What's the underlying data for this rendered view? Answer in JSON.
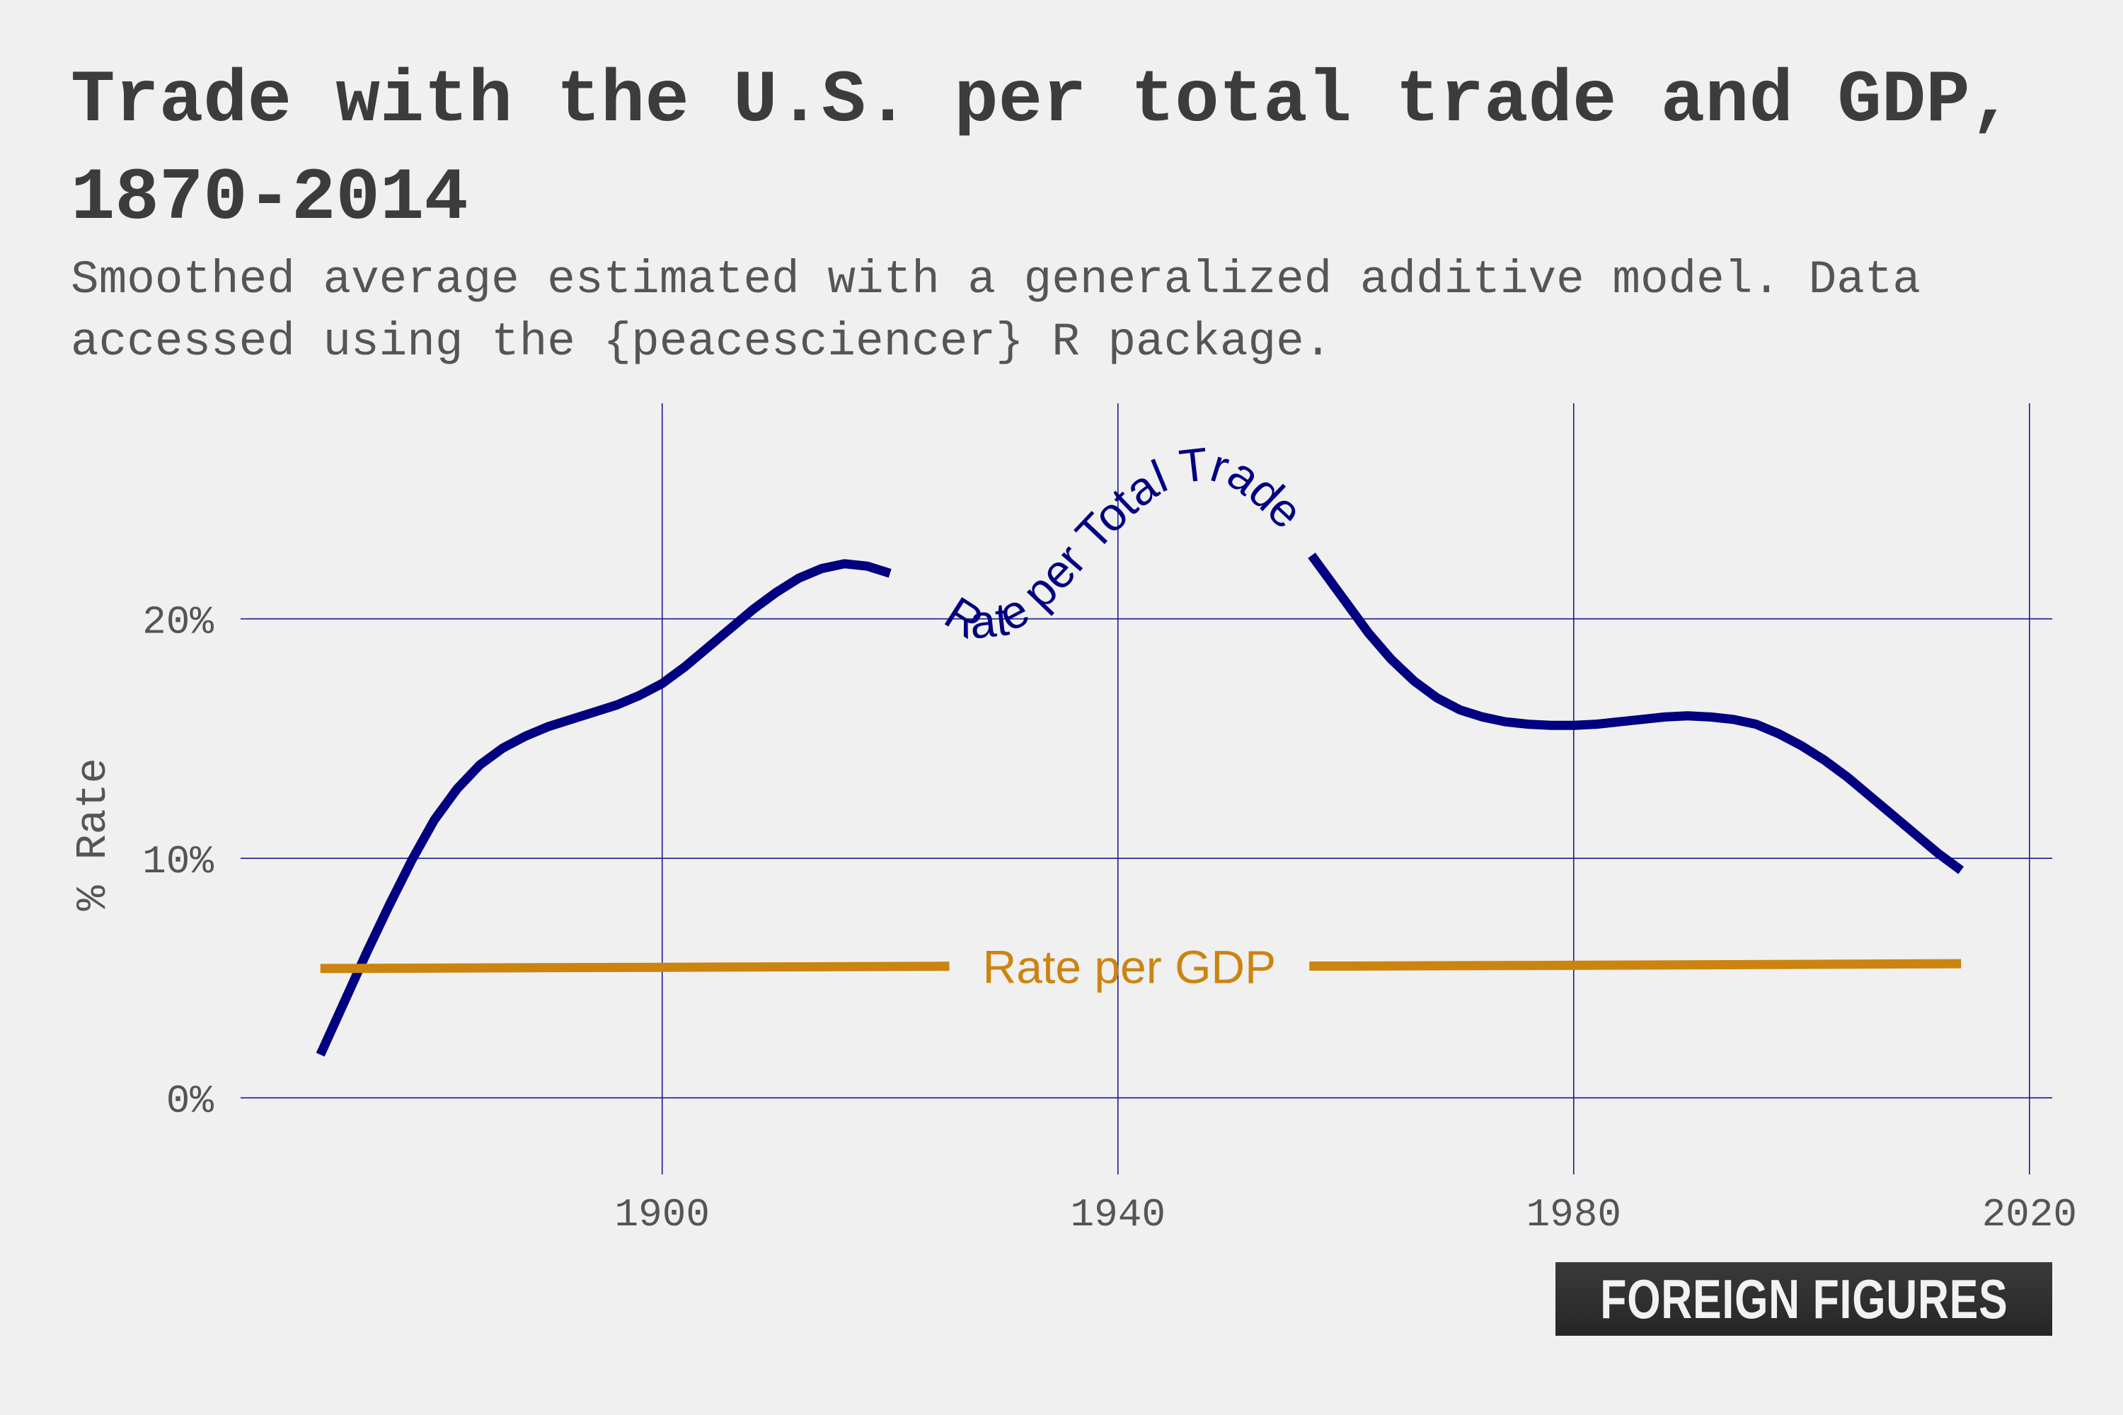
{
  "header": {
    "title": "Trade with the U.S. per total trade and GDP, 1870-2014",
    "subtitle": "Smoothed average estimated with a generalized additive model. Data accessed using the {peacesciencer} R package."
  },
  "branding": {
    "logo_text": "FOREIGN FIGURES"
  },
  "colors": {
    "background": "#f0f0f0",
    "grid": "#1a1a8c",
    "series_total_trade": "#000080",
    "series_gdp": "#cc8410"
  },
  "chart_data": {
    "type": "line",
    "title": "Trade with the U.S. per total trade and GDP, 1870-2014",
    "xlabel": "",
    "ylabel": "% Rate",
    "xlim": [
      1863,
      2022
    ],
    "ylim": [
      -3.2,
      29
    ],
    "x_ticks": [
      1900,
      1940,
      1980,
      2020
    ],
    "y_ticks": [
      0,
      10,
      20
    ],
    "y_tick_labels": [
      "0%",
      "10%",
      "20%"
    ],
    "grid": true,
    "legend": "none (direct labels)",
    "series": [
      {
        "name": "Rate per Total Trade",
        "label_position": "along curve 1921-1956",
        "x": [
          1870,
          1872,
          1874,
          1876,
          1878,
          1880,
          1882,
          1884,
          1886,
          1888,
          1890,
          1892,
          1894,
          1896,
          1898,
          1900,
          1902,
          1904,
          1906,
          1908,
          1910,
          1912,
          1914,
          1916,
          1918,
          1920,
          1922,
          1924,
          1926,
          1928,
          1930,
          1932,
          1934,
          1936,
          1938,
          1940,
          1942,
          1944,
          1946,
          1948,
          1950,
          1952,
          1954,
          1956,
          1958,
          1960,
          1962,
          1964,
          1966,
          1968,
          1970,
          1972,
          1974,
          1976,
          1978,
          1980,
          1982,
          1984,
          1986,
          1988,
          1990,
          1992,
          1994,
          1996,
          1998,
          2000,
          2002,
          2004,
          2006,
          2008,
          2010,
          2012,
          2014
        ],
        "values": [
          1.8,
          3.9,
          6.0,
          8.0,
          9.9,
          11.6,
          12.9,
          13.9,
          14.6,
          15.1,
          15.5,
          15.8,
          16.1,
          16.4,
          16.8,
          17.3,
          18.0,
          18.8,
          19.6,
          20.4,
          21.1,
          21.7,
          22.1,
          22.3,
          22.2,
          21.9,
          21.3,
          20.6,
          20.0,
          19.8,
          19.9,
          20.4,
          21.2,
          22.2,
          23.3,
          24.3,
          25.2,
          25.9,
          26.3,
          26.4,
          26.1,
          25.4,
          24.5,
          23.3,
          22.0,
          20.7,
          19.4,
          18.3,
          17.4,
          16.7,
          16.2,
          15.9,
          15.7,
          15.6,
          15.55,
          15.55,
          15.6,
          15.7,
          15.8,
          15.9,
          15.95,
          15.9,
          15.8,
          15.6,
          15.2,
          14.7,
          14.1,
          13.4,
          12.6,
          11.8,
          11.0,
          10.2,
          9.5
        ]
      },
      {
        "name": "Rate per GDP",
        "label_position": "center, inline at 1940",
        "x": [
          1870,
          1900,
          1930,
          1960,
          1990,
          2014
        ],
        "values": [
          5.4,
          5.45,
          5.5,
          5.5,
          5.55,
          5.6
        ]
      }
    ]
  }
}
